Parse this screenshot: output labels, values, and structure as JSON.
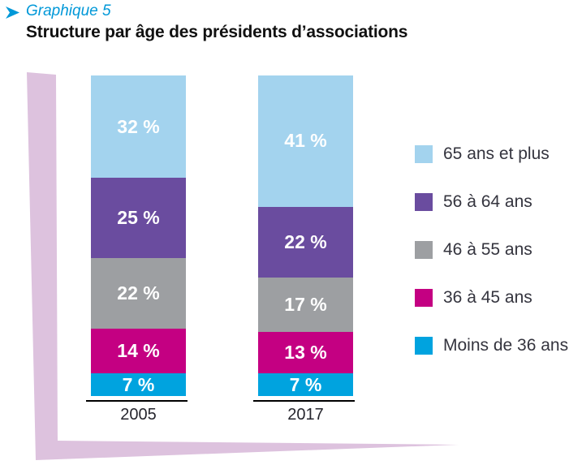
{
  "header": {
    "kicker": "Graphique 5",
    "title": "Structure par âge des présidents d’associations"
  },
  "chart_data": {
    "type": "bar",
    "stacked": true,
    "orientation": "vertical",
    "unit": "%",
    "title": "Structure par âge des présidents d’associations",
    "categories": [
      "2005",
      "2017"
    ],
    "series": [
      {
        "name": "65 ans et plus",
        "color": "#a3d3ee",
        "values": [
          32,
          41
        ]
      },
      {
        "name": "56 à 64 ans",
        "color": "#6a4c9f",
        "values": [
          25,
          22
        ]
      },
      {
        "name": "46 à 55 ans",
        "color": "#9d9fa2",
        "values": [
          22,
          17
        ]
      },
      {
        "name": "36 à 45 ans",
        "color": "#c40082",
        "values": [
          14,
          13
        ]
      },
      {
        "name": "Moins de 36 ans",
        "color": "#00a3df",
        "values": [
          7,
          7
        ]
      }
    ],
    "value_label_suffix": " %",
    "legend_position": "right",
    "ylim": [
      0,
      100
    ],
    "grid": false
  },
  "colors": {
    "accent_blue": "#0098d8",
    "ribbon_pink": "#ddc2de",
    "axis_black": "#000000",
    "text_dark": "#26262e",
    "value_label_white": "#ffffff"
  }
}
